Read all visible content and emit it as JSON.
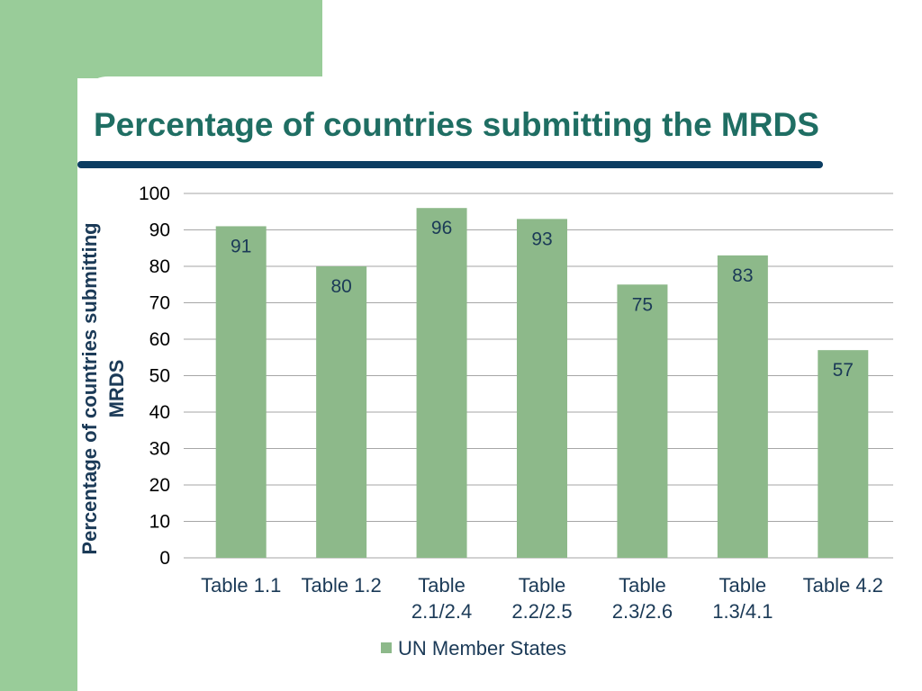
{
  "title": "Percentage of countries submitting the MRDS",
  "colors": {
    "accent": "#99cc99",
    "title_text": "#1f6e63",
    "rule": "#0b3d62",
    "bar": "#8db98a",
    "label_text": "#1b3a57"
  },
  "chart_data": {
    "type": "bar",
    "categories": [
      "Table 1.1",
      "Table 1.2",
      "Table 2.1/2.4",
      "Table 2.2/2.5",
      "Table 2.3/2.6",
      "Table 1.3/4.1",
      "Table 4.2"
    ],
    "category_label_lines": [
      [
        "Table 1.1"
      ],
      [
        "Table 1.2"
      ],
      [
        "Table",
        "2.1/2.4"
      ],
      [
        "Table",
        "2.2/2.5"
      ],
      [
        "Table",
        "2.3/2.6"
      ],
      [
        "Table",
        "1.3/4.1"
      ],
      [
        "Table 4.2"
      ]
    ],
    "series": [
      {
        "name": "UN Member States",
        "values": [
          91,
          80,
          96,
          93,
          75,
          83,
          57
        ]
      }
    ],
    "title": "",
    "xlabel": "",
    "ylabel_lines": [
      "Percentage of countries submitting",
      "MRDS"
    ],
    "ylim": [
      0,
      100
    ],
    "ytick_step": 10,
    "grid": true,
    "data_labels": true,
    "legend_position": "bottom"
  }
}
